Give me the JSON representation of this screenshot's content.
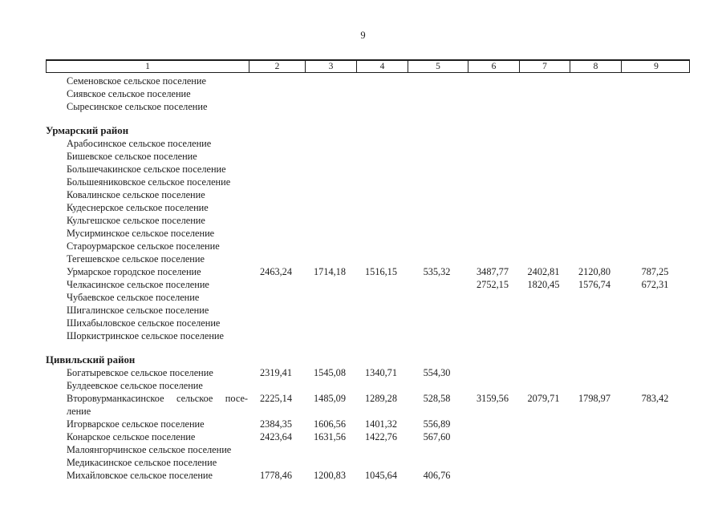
{
  "page": {
    "number": "9"
  },
  "table": {
    "column_headers": [
      "1",
      "2",
      "3",
      "4",
      "5",
      "6",
      "7",
      "8",
      "9"
    ],
    "sections": [
      {
        "district": "",
        "rows": [
          {
            "lines": [
              "Семеновское сельское поселение"
            ],
            "values": [
              "",
              "",
              "",
              "",
              "",
              "",
              "",
              ""
            ]
          },
          {
            "lines": [
              "Сиявское сельское поселение"
            ],
            "values": [
              "",
              "",
              "",
              "",
              "",
              "",
              "",
              ""
            ]
          },
          {
            "lines": [
              "Сыресинское сельское поселение"
            ],
            "values": [
              "",
              "",
              "",
              "",
              "",
              "",
              "",
              ""
            ]
          }
        ]
      },
      {
        "district": "Урмарский район",
        "rows": [
          {
            "lines": [
              "Арабосинское сельское поселение"
            ],
            "values": [
              "",
              "",
              "",
              "",
              "",
              "",
              "",
              ""
            ]
          },
          {
            "lines": [
              "Бишевское сельское поселение"
            ],
            "values": [
              "",
              "",
              "",
              "",
              "",
              "",
              "",
              ""
            ]
          },
          {
            "lines": [
              "Большечакинское сельское поселение"
            ],
            "values": [
              "",
              "",
              "",
              "",
              "",
              "",
              "",
              ""
            ]
          },
          {
            "lines": [
              "Большеяниковское сельское поселение"
            ],
            "values": [
              "",
              "",
              "",
              "",
              "",
              "",
              "",
              ""
            ]
          },
          {
            "lines": [
              "Ковалинское сельское поселение"
            ],
            "values": [
              "",
              "",
              "",
              "",
              "",
              "",
              "",
              ""
            ]
          },
          {
            "lines": [
              "Кудеснерское сельское поселение"
            ],
            "values": [
              "",
              "",
              "",
              "",
              "",
              "",
              "",
              ""
            ]
          },
          {
            "lines": [
              "Кульгешское сельское поселение"
            ],
            "values": [
              "",
              "",
              "",
              "",
              "",
              "",
              "",
              ""
            ]
          },
          {
            "lines": [
              "Мусирминское сельское поселение"
            ],
            "values": [
              "",
              "",
              "",
              "",
              "",
              "",
              "",
              ""
            ]
          },
          {
            "lines": [
              "Староурмарское сельское поселение"
            ],
            "values": [
              "",
              "",
              "",
              "",
              "",
              "",
              "",
              ""
            ]
          },
          {
            "lines": [
              "Тегешевское сельское поселение"
            ],
            "values": [
              "",
              "",
              "",
              "",
              "",
              "",
              "",
              ""
            ]
          },
          {
            "lines": [
              "Урмарское городское поселение"
            ],
            "values": [
              "2463,24",
              "1714,18",
              "1516,15",
              "535,32",
              "3487,77",
              "2402,81",
              "2120,80",
              "787,25"
            ]
          },
          {
            "lines": [
              "Челкасинское сельское поселение"
            ],
            "values": [
              "",
              "",
              "",
              "",
              "2752,15",
              "1820,45",
              "1576,74",
              "672,31"
            ]
          },
          {
            "lines": [
              "Чубаевское сельское поселение"
            ],
            "values": [
              "",
              "",
              "",
              "",
              "",
              "",
              "",
              ""
            ]
          },
          {
            "lines": [
              "Шигалинское сельское поселение"
            ],
            "values": [
              "",
              "",
              "",
              "",
              "",
              "",
              "",
              ""
            ]
          },
          {
            "lines": [
              "Шихабыловское сельское поселение"
            ],
            "values": [
              "",
              "",
              "",
              "",
              "",
              "",
              "",
              ""
            ]
          },
          {
            "lines": [
              "Шоркистринское сельское поселение"
            ],
            "values": [
              "",
              "",
              "",
              "",
              "",
              "",
              "",
              ""
            ]
          }
        ]
      },
      {
        "district": "Цивильский район",
        "rows": [
          {
            "lines": [
              "Богатыревское сельское поселение"
            ],
            "values": [
              "2319,41",
              "1545,08",
              "1340,71",
              "554,30",
              "",
              "",
              "",
              ""
            ]
          },
          {
            "lines": [
              "Булдеевское сельское поселение"
            ],
            "values": [
              "",
              "",
              "",
              "",
              "",
              "",
              "",
              ""
            ]
          },
          {
            "lines": [
              "Второвурманкасинское сельское посе-",
              "ление"
            ],
            "values": [
              "2225,14",
              "1485,09",
              "1289,28",
              "528,58",
              "3159,56",
              "2079,71",
              "1798,97",
              "783,42"
            ]
          },
          {
            "lines": [
              "Игорварское сельское поселение"
            ],
            "values": [
              "2384,35",
              "1606,56",
              "1401,32",
              "556,89",
              "",
              "",
              "",
              ""
            ]
          },
          {
            "lines": [
              "Конарское сельское поселение"
            ],
            "values": [
              "2423,64",
              "1631,56",
              "1422,76",
              "567,60",
              "",
              "",
              "",
              ""
            ]
          },
          {
            "lines": [
              "Малоянгорчинское сельское поселение"
            ],
            "values": [
              "",
              "",
              "",
              "",
              "",
              "",
              "",
              ""
            ]
          },
          {
            "lines": [
              "Медикасинское сельское поселение"
            ],
            "values": [
              "",
              "",
              "",
              "",
              "",
              "",
              "",
              ""
            ]
          },
          {
            "lines": [
              "Михайловское сельское поселение"
            ],
            "values": [
              "1778,46",
              "1200,83",
              "1045,64",
              "406,76",
              "",
              "",
              "",
              ""
            ]
          }
        ]
      }
    ]
  }
}
